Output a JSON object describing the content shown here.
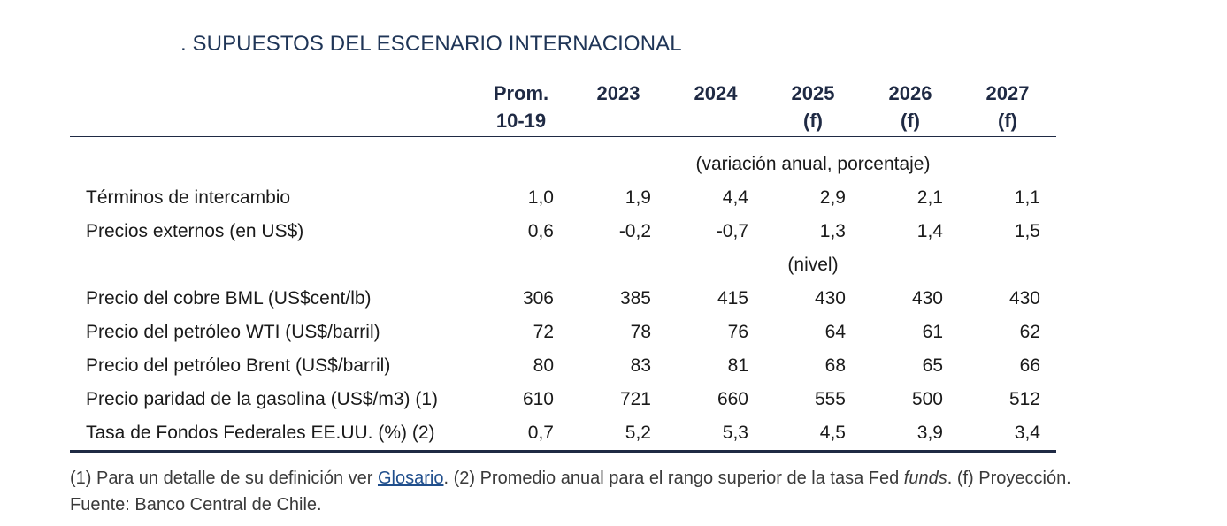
{
  "title": ". SUPUESTOS DEL ESCENARIO INTERNACIONAL",
  "table": {
    "headers": [
      {
        "line1": "Prom.",
        "line2": "10-19"
      },
      {
        "line1": "2023",
        "line2": ""
      },
      {
        "line1": "2024",
        "line2": ""
      },
      {
        "line1": "2025",
        "line2": "(f)"
      },
      {
        "line1": "2026",
        "line2": "(f)"
      },
      {
        "line1": "2027",
        "line2": "(f)"
      }
    ],
    "unit_variation": "(variación anual, porcentaje)",
    "unit_level": "(nivel)",
    "rows": [
      {
        "label": "Términos de intercambio",
        "values": [
          "1,0",
          "1,9",
          "4,4",
          "2,9",
          "2,1",
          "1,1"
        ]
      },
      {
        "label": "Precios externos (en US$)",
        "values": [
          "0,6",
          "-0,2",
          "-0,7",
          "1,3",
          "1,4",
          "1,5"
        ]
      },
      {
        "label": "Precio del cobre BML (US$cent/lb)",
        "values": [
          "306",
          "385",
          "415",
          "430",
          "430",
          "430"
        ]
      },
      {
        "label": "Precio del petróleo WTI (US$/barril)",
        "values": [
          "72",
          "78",
          "76",
          "64",
          "61",
          "62"
        ]
      },
      {
        "label": "Precio del petróleo Brent (US$/barril)",
        "values": [
          "80",
          "83",
          "81",
          "68",
          "65",
          "66"
        ]
      },
      {
        "label": "Precio paridad de la gasolina (US$/m3) (1)",
        "values": [
          "610",
          "721",
          "660",
          "555",
          "500",
          "512"
        ]
      },
      {
        "label": "Tasa de Fondos Federales EE.UU. (%) (2)",
        "values": [
          "0,7",
          "5,2",
          "5,3",
          "4,5",
          "3,9",
          "3,4"
        ]
      }
    ]
  },
  "notes": {
    "n1_prefix": "(1) Para un detalle de su definición ver ",
    "n1_link": "Glosario",
    "n1_suffix": ". (2) Promedio anual para el rango superior de la tasa Fed ",
    "n1_italic": "funds",
    "n1_end": ". (f) Proyección.",
    "source": "Fuente: Banco Central de Chile."
  }
}
